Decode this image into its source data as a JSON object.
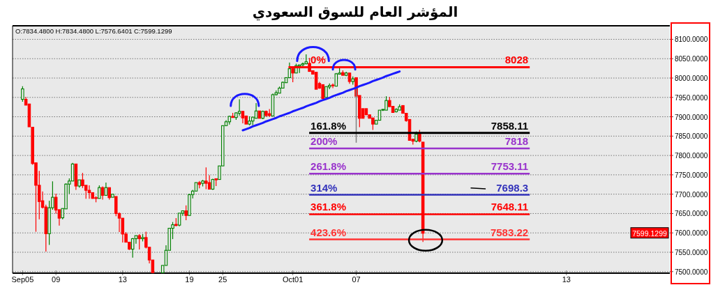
{
  "chart_data": {
    "type": "candlestick",
    "title": "المؤشر العام للسوق السعودي",
    "categories": [
      "Sep05",
      null,
      null,
      null,
      null,
      null,
      null,
      null,
      null,
      null,
      "09",
      null,
      null,
      null,
      null,
      null,
      null,
      null,
      null,
      null,
      null,
      null,
      null,
      null,
      null,
      null,
      null,
      null,
      null,
      null,
      "13",
      null,
      null,
      null,
      null,
      null,
      null,
      null,
      null,
      null,
      null,
      null,
      null,
      null,
      null,
      null,
      null,
      null,
      null,
      null,
      "19",
      null,
      null,
      null,
      null,
      null,
      null,
      null,
      null,
      null,
      "25",
      null,
      null,
      null,
      null,
      null,
      null,
      null,
      null,
      null,
      null,
      null,
      null,
      null,
      null,
      null,
      null,
      null,
      null,
      null,
      null,
      "Oct01",
      null,
      null,
      null,
      null,
      null,
      null,
      null,
      null,
      null,
      null,
      null,
      null,
      null,
      null,
      null,
      null,
      null,
      null,
      "07",
      null,
      null,
      null,
      null,
      null,
      null,
      null,
      null,
      null,
      null,
      null,
      null,
      null,
      null,
      null,
      null,
      null,
      null,
      null,
      null,
      null,
      null,
      null,
      null,
      null,
      null,
      null,
      null,
      null,
      null,
      null,
      null,
      null,
      null,
      null,
      null,
      null,
      null,
      null,
      null,
      null,
      null,
      null,
      null,
      null,
      null,
      null,
      null,
      null,
      null,
      null,
      null,
      null,
      null,
      null,
      null,
      null,
      null,
      null,
      null,
      null,
      null,
      "13",
      null,
      null,
      null,
      null,
      null,
      null,
      null,
      null,
      null,
      null,
      null,
      null,
      null,
      null,
      null,
      null,
      null,
      null,
      null,
      null,
      null,
      null,
      null,
      null,
      null,
      null,
      null,
      null,
      null,
      null
    ],
    "ohlc": [
      [
        7945,
        7979,
        7939,
        7972
      ],
      [
        7945,
        7951,
        7930,
        7930
      ],
      [
        7933,
        7933,
        7874,
        7874
      ],
      [
        7873,
        7873,
        7776,
        7779
      ],
      [
        7781,
        7781,
        7603,
        7723
      ],
      [
        7723,
        7760,
        7635,
        7681
      ],
      [
        7683,
        7707,
        7663,
        7666
      ],
      [
        7667,
        7673,
        7552,
        7598
      ],
      [
        7598,
        7683,
        7569,
        7665
      ],
      [
        7665,
        7733,
        7660,
        7692
      ],
      [
        7692,
        7701,
        7650,
        7659
      ],
      [
        7660,
        7660,
        7619,
        7638
      ],
      [
        7639,
        7663,
        7635,
        7663
      ],
      [
        7662,
        7728,
        7662,
        7726
      ],
      [
        7726,
        7741,
        7701,
        7734
      ],
      [
        7734,
        7781,
        7734,
        7778
      ],
      [
        7778,
        7778,
        7711,
        7721
      ],
      [
        7721,
        7737,
        7717,
        7737
      ],
      [
        7737,
        7755,
        7716,
        7722
      ],
      [
        7723,
        7723,
        7688,
        7710
      ],
      [
        7710,
        7723,
        7688,
        7704
      ],
      [
        7704,
        7704,
        7688,
        7689
      ],
      [
        7691,
        7695,
        7679,
        7689
      ],
      [
        7689,
        7723,
        7689,
        7717
      ],
      [
        7717,
        7720,
        7686,
        7697
      ],
      [
        7697,
        7730,
        7697,
        7717
      ],
      [
        7717,
        7717,
        7686,
        7691
      ],
      [
        7692,
        7700,
        7692,
        7700
      ],
      [
        7694,
        7694,
        7643,
        7650
      ],
      [
        7650,
        7653,
        7602,
        7638
      ],
      [
        7638,
        7638,
        7575,
        7597
      ],
      [
        7597,
        7602,
        7576,
        7576
      ],
      [
        7576,
        7576,
        7556,
        7558
      ],
      [
        7558,
        7587,
        7536,
        7585
      ],
      [
        7585,
        7593,
        7572,
        7593
      ],
      [
        7593,
        7597,
        7557,
        7585
      ],
      [
        7585,
        7597,
        7578,
        7588
      ],
      [
        7588,
        7603,
        7560,
        7563
      ],
      [
        7563,
        7563,
        7521,
        7530
      ],
      [
        7530,
        7530,
        7497,
        7497
      ],
      null,
      null,
      [
        7497,
        7516,
        7497,
        7516
      ],
      [
        7516,
        7568,
        7516,
        7555
      ],
      [
        7555,
        7612,
        7555,
        7612
      ],
      [
        7612,
        7628,
        7584,
        7621
      ],
      [
        7622,
        7638,
        7617,
        7619
      ],
      [
        7620,
        7651,
        7617,
        7651
      ],
      [
        7651,
        7657,
        7644,
        7657
      ],
      [
        7657,
        7671,
        7633,
        7645
      ],
      [
        7645,
        7701,
        7645,
        7699
      ],
      [
        7699,
        7711,
        7689,
        7708
      ],
      [
        7708,
        7730,
        7708,
        7730
      ],
      [
        7730,
        7734,
        7715,
        7725
      ],
      [
        7728,
        7737,
        7720,
        7734
      ],
      [
        7734,
        7769,
        7713,
        7728
      ],
      [
        7730,
        7749,
        7713,
        7713
      ],
      [
        7713,
        7740,
        7711,
        7738
      ],
      [
        7740,
        7740,
        7721,
        7737
      ],
      [
        7738,
        7773,
        7738,
        7773
      ],
      [
        7773,
        7877,
        7773,
        7877
      ],
      [
        7877,
        7891,
        7877,
        7887
      ],
      [
        7887,
        7903,
        7880,
        7901
      ],
      [
        7901,
        7910,
        7898,
        7898
      ],
      [
        7898,
        7912,
        7892,
        7910
      ],
      [
        7909,
        7945,
        7903,
        7914
      ],
      [
        7914,
        7914,
        7883,
        7897
      ],
      [
        7902,
        7902,
        7881,
        7881
      ],
      [
        7881,
        7901,
        7878,
        7889
      ],
      [
        7889,
        7899,
        7878,
        7899
      ],
      [
        7896,
        7935,
        7896,
        7915
      ],
      [
        7915,
        7915,
        7896,
        7896
      ],
      [
        7896,
        7916,
        7894,
        7914
      ],
      [
        7914,
        7916,
        7900,
        7903
      ],
      [
        7908,
        7920,
        7900,
        7903
      ],
      [
        7902,
        7960,
        7902,
        7957
      ],
      [
        7957,
        7968,
        7955,
        7962
      ],
      [
        7961,
        7978,
        7961,
        7974
      ],
      [
        7974,
        7991,
        7974,
        7989
      ],
      [
        7988,
        8001,
        7988,
        8001
      ],
      [
        8001,
        8040,
        8001,
        8024
      ],
      [
        8024,
        8024,
        7989,
        8013
      ],
      [
        8013,
        8037,
        8013,
        8032
      ],
      [
        8031,
        8034,
        8013,
        8034
      ],
      [
        8034,
        8040,
        8030,
        8037
      ],
      [
        8037,
        8061,
        8035,
        8042
      ],
      [
        8038,
        8052,
        8017,
        8017
      ],
      [
        8019,
        8019,
        8010,
        8010
      ],
      [
        8015,
        8015,
        7971,
        7971
      ],
      [
        7986,
        7990,
        7972,
        7974
      ],
      [
        7983,
        7983,
        7945,
        7947
      ],
      [
        7950,
        7978,
        7950,
        7978
      ],
      [
        7977,
        7986,
        7971,
        7981
      ],
      [
        7982,
        7986,
        7974,
        7980
      ],
      [
        7979,
        8013,
        7979,
        8011
      ],
      [
        8010,
        8025,
        8010,
        8013
      ],
      [
        8014,
        8020,
        8007,
        8007
      ],
      [
        8007,
        8016,
        8005,
        8013
      ],
      [
        8013,
        8013,
        7985,
        7991
      ],
      [
        7991,
        8004,
        7983,
        7998
      ],
      [
        8001,
        8001,
        7953,
        7953
      ],
      [
        7955,
        7955,
        7873,
        7896
      ],
      [
        7921,
        7921,
        7896,
        7896
      ],
      [
        7921,
        7921,
        7905,
        7905
      ],
      [
        7905,
        7905,
        7896,
        7896
      ],
      [
        7897,
        7897,
        7866,
        7881
      ],
      [
        7881,
        7891,
        7881,
        7891
      ],
      [
        7891,
        7917,
        7891,
        7917
      ],
      [
        7917,
        7920,
        7915,
        7919
      ],
      [
        7917,
        7953,
        7917,
        7942
      ],
      [
        7942,
        7951,
        7926,
        7926
      ],
      [
        7927,
        7927,
        7911,
        7911
      ],
      [
        7913,
        7922,
        7911,
        7919
      ],
      [
        7917,
        7932,
        7917,
        7926
      ],
      [
        7929,
        7929,
        7909,
        7909
      ],
      [
        7909,
        7909,
        7887,
        7890
      ],
      [
        7893,
        7893,
        7839,
        7839
      ],
      [
        7842,
        7842,
        7828,
        7837
      ],
      [
        7837,
        7862,
        7834,
        7855
      ],
      [
        7855,
        7866,
        7834,
        7837
      ],
      [
        7834.48,
        7834.48,
        7576.64,
        7599.13
      ],
      null,
      null,
      null,
      null,
      null,
      null,
      null,
      null,
      null,
      null,
      null,
      null,
      null,
      null,
      null,
      null,
      null,
      null,
      null,
      null,
      null,
      null,
      null,
      null,
      null,
      null,
      null,
      null,
      null,
      null,
      null,
      null,
      null,
      null,
      null,
      null,
      null,
      null,
      null,
      null,
      null,
      null,
      null,
      null,
      null,
      null,
      null,
      null,
      null,
      null,
      null,
      null,
      null,
      null,
      null,
      null,
      null,
      null,
      null,
      null,
      null,
      null,
      null,
      null,
      null,
      null,
      null,
      null,
      null,
      null,
      null,
      null,
      null
    ],
    "series": [
      {
        "type": "line",
        "color": "#1a1aff",
        "values": [
          null,
          null,
          null,
          null,
          null,
          null,
          null,
          null,
          null,
          null,
          null,
          null,
          null,
          null,
          null,
          null,
          null,
          null,
          null,
          null,
          null,
          null,
          null,
          null,
          null,
          null,
          null,
          null,
          null,
          null,
          null,
          null,
          null,
          null,
          null,
          null,
          null,
          null,
          null,
          null,
          null,
          null,
          null,
          null,
          null,
          null,
          null,
          null,
          null,
          null,
          null,
          null,
          null,
          null,
          null,
          null,
          null,
          null,
          null,
          null,
          null,
          null,
          null,
          null,
          null,
          null,
          7865,
          7868,
          7871,
          7875,
          7878,
          7881,
          7884,
          7888,
          7891,
          7894,
          7897,
          7901,
          7904,
          7907,
          7910,
          7914,
          7917,
          7920,
          7923,
          7927,
          7930,
          7933,
          7936,
          7940,
          7943,
          7946,
          7949,
          7953,
          7956,
          7959,
          7962,
          7966,
          7969,
          7972,
          7975,
          7979,
          7982,
          7985,
          7988,
          7992,
          7995,
          7998,
          8001,
          8005,
          8008,
          8011,
          8014,
          8017,
          null,
          null,
          null,
          null,
          null,
          null,
          null,
          null,
          null,
          null,
          null,
          null,
          null,
          null,
          null,
          null,
          null,
          null,
          null,
          null,
          null,
          null,
          null,
          null,
          null,
          null,
          null,
          null,
          null,
          null,
          null,
          null,
          null,
          null,
          null,
          null,
          null,
          null,
          null,
          null,
          null,
          null,
          null,
          null,
          null,
          null,
          null,
          null,
          null,
          null,
          null,
          null,
          null,
          null,
          null,
          null,
          null,
          null,
          null,
          null,
          null,
          null,
          null,
          null,
          null,
          null,
          null,
          null,
          null,
          null,
          null,
          null,
          null,
          null,
          null,
          null,
          null,
          null,
          null,
          null
        ]
      }
    ],
    "ylim": [
      7496,
      8135
    ],
    "yticks": [
      {
        "value": 7500,
        "label": "7500.0000"
      },
      {
        "value": 7550,
        "label": "7550.0000"
      },
      {
        "value": 7600,
        "label": "7600.0000"
      },
      {
        "value": 7650,
        "label": "7650.0000"
      },
      {
        "value": 7700,
        "label": "7700.0000"
      },
      {
        "value": 7750,
        "label": "7750.0000"
      },
      {
        "value": 7800,
        "label": "7800.0000"
      },
      {
        "value": 7850,
        "label": "7850.0000"
      },
      {
        "value": 7900,
        "label": "7900.0000"
      },
      {
        "value": 7950,
        "label": "7950.0000"
      },
      {
        "value": 8000,
        "label": "8000.0000"
      },
      {
        "value": 8050,
        "label": "8050.0000"
      },
      {
        "value": 8100,
        "label": "8100.0000"
      }
    ],
    "grid": "y",
    "ref_lines": [
      {
        "axis": "x",
        "value": "07",
        "color": "#808080"
      },
      {
        "axis": "y",
        "value": 8028,
        "label": "8028",
        "color": "#ff0000"
      },
      {
        "axis": "y",
        "value": 7858.11,
        "label": "7858.11",
        "color": "#000000"
      },
      {
        "axis": "y",
        "value": 7818,
        "label": "7818",
        "color": "#9933cc"
      },
      {
        "axis": "y",
        "value": 7753.11,
        "label": "7753.11",
        "color": "#9933cc"
      },
      {
        "axis": "y",
        "value": 7698.3,
        "label": "7698.3",
        "color": "#3333bb"
      },
      {
        "axis": "y",
        "value": 7648.11,
        "label": "7648.11",
        "color": "#ff0000"
      },
      {
        "axis": "y",
        "value": 7583.22,
        "label": "7583.22",
        "color": "#ff3333"
      }
    ],
    "annotations": [
      "O:7834.4800  H:7834.4800  L:7576.6401  C:7599.1299",
      "7599.1299",
      {
        "text": "0%",
        "y": 8028
      },
      {
        "text": "161.8%",
        "y": 7858.11
      },
      {
        "text": "200%",
        "y": 7818
      },
      {
        "text": "261.8%",
        "y": 7753.11
      },
      {
        "text": "314%",
        "y": 7698.3
      },
      {
        "text": "361.8%",
        "y": 7648.11
      },
      {
        "text": "423.6%",
        "y": 7583.22
      }
    ]
  }
}
